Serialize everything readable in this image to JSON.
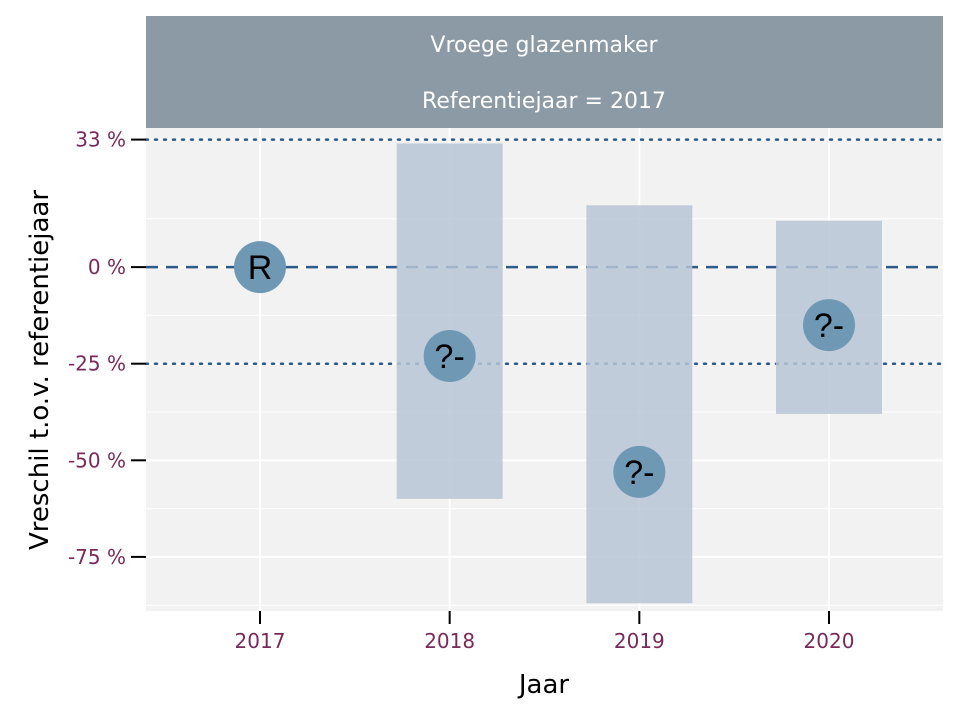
{
  "chart_data": {
    "type": "scatter",
    "facet": {
      "title": "Vroege glazenmaker",
      "subtitle": "Referentiejaar = 2017"
    },
    "xlabel": "Jaar",
    "ylabel": "Vreschil t.o.v. referentiejaar",
    "categories": [
      "2017",
      "2018",
      "2019",
      "2020"
    ],
    "points": [
      {
        "year": "2017",
        "estimate": 0,
        "lower": null,
        "upper": null,
        "label": "R"
      },
      {
        "year": "2018",
        "estimate": -23,
        "lower": -60,
        "upper": 32,
        "label": "?-"
      },
      {
        "year": "2019",
        "estimate": -53,
        "lower": -87,
        "upper": 16,
        "label": "?-"
      },
      {
        "year": "2020",
        "estimate": -15,
        "lower": -38,
        "upper": 12,
        "label": "?-"
      }
    ],
    "y_ticks": [
      {
        "value": 33,
        "label": "33 %"
      },
      {
        "value": 0,
        "label": "0 %"
      },
      {
        "value": -25,
        "label": "-25 %"
      },
      {
        "value": -50,
        "label": "-50 %"
      },
      {
        "value": -75,
        "label": "-75 %"
      }
    ],
    "reference_lines": [
      {
        "value": 0,
        "style": "dashed"
      },
      {
        "value": 33,
        "style": "dotted"
      },
      {
        "value": -25,
        "style": "dotted"
      }
    ],
    "ylim": [
      -89,
      36
    ],
    "grid": true,
    "colors": {
      "strip": "#8c9aa5",
      "panel": "#f2f2f2",
      "interval": "#b8c6d6",
      "marker": "#6f98b5",
      "reference": "#2c5a8c",
      "tick_text": "#7a2a5a"
    }
  }
}
